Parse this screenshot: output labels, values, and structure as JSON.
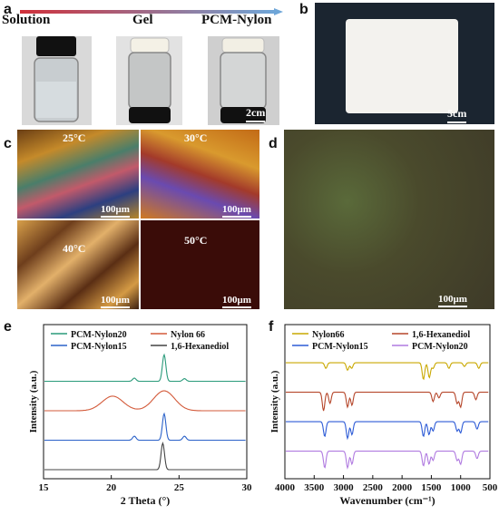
{
  "panel_a": {
    "label": "a",
    "stages": [
      "Solution",
      "Gel",
      "PCM-Nylon"
    ],
    "scale": "2cm",
    "arrow_colors": [
      "#d0303a",
      "#6fa6d8"
    ]
  },
  "panel_b": {
    "label": "b",
    "scale": "5cm"
  },
  "panel_c": {
    "label": "c",
    "temps": [
      "25°C",
      "30°C",
      "40°C",
      "50°C"
    ],
    "scale": "100μm"
  },
  "panel_d": {
    "label": "d",
    "scale": "100μm"
  },
  "chart_data": [
    {
      "panel": "e",
      "type": "line",
      "xlabel": "2 Theta (°)",
      "ylabel": "Intensity (a.u.)",
      "xlim": [
        15,
        30
      ],
      "xticks": [
        "15",
        "20",
        "25",
        "30"
      ],
      "legend": {
        "placement": "top",
        "columns": 2
      },
      "series": [
        {
          "name": "PCM-Nylon20",
          "color": "#2a9a7a",
          "peaks": [
            [
              21.7,
              0.12
            ],
            [
              23.9,
              1.0
            ],
            [
              25.4,
              0.1
            ]
          ]
        },
        {
          "name": "Nylon 66",
          "color": "#d35a3a",
          "peaks": [
            [
              20.1,
              0.55
            ],
            [
              23.9,
              0.75
            ]
          ]
        },
        {
          "name": "PCM-Nylon15",
          "color": "#2b62c9",
          "peaks": [
            [
              21.7,
              0.15
            ],
            [
              23.9,
              1.0
            ],
            [
              25.4,
              0.15
            ]
          ]
        },
        {
          "name": "1,6-Hexanediol",
          "color": "#444444",
          "peaks": [
            [
              23.8,
              1.0
            ]
          ]
        }
      ]
    },
    {
      "panel": "f",
      "type": "line",
      "xlabel": "Wavenumber (cm⁻¹)",
      "ylabel": "Intensity (a.u.)",
      "xlim": [
        4000,
        500
      ],
      "xticks": [
        "4000",
        "3500",
        "3000",
        "2500",
        "2000",
        "1500",
        "1000",
        "500"
      ],
      "legend": {
        "placement": "top",
        "columns": 2
      },
      "series": [
        {
          "name": "Nylon66",
          "color": "#c9a800",
          "dips": [
            [
              3300,
              0.3
            ],
            [
              2930,
              0.4
            ],
            [
              2860,
              0.3
            ],
            [
              1635,
              0.9
            ],
            [
              1535,
              0.8
            ],
            [
              1470,
              0.3
            ],
            [
              1200,
              0.3
            ],
            [
              935,
              0.2
            ],
            [
              690,
              0.3
            ]
          ]
        },
        {
          "name": "1,6-Hexanediol",
          "color": "#b5462a",
          "dips": [
            [
              3340,
              1.0
            ],
            [
              3230,
              0.6
            ],
            [
              2930,
              0.8
            ],
            [
              2855,
              0.7
            ],
            [
              1470,
              0.5
            ],
            [
              1370,
              0.3
            ],
            [
              1060,
              0.6
            ],
            [
              1000,
              0.8
            ],
            [
              740,
              0.4
            ]
          ]
        },
        {
          "name": "PCM-Nylon15",
          "color": "#2d5bd6",
          "dips": [
            [
              3320,
              0.8
            ],
            [
              2930,
              0.9
            ],
            [
              2855,
              0.7
            ],
            [
              1635,
              0.8
            ],
            [
              1540,
              0.7
            ],
            [
              1470,
              0.5
            ],
            [
              1060,
              0.5
            ],
            [
              1000,
              0.6
            ],
            [
              720,
              0.4
            ]
          ]
        },
        {
          "name": "PCM-Nylon20",
          "color": "#b07ae0",
          "dips": [
            [
              3320,
              0.9
            ],
            [
              2930,
              0.9
            ],
            [
              2855,
              0.7
            ],
            [
              1635,
              0.8
            ],
            [
              1540,
              0.7
            ],
            [
              1470,
              0.5
            ],
            [
              1060,
              0.5
            ],
            [
              1000,
              0.7
            ],
            [
              720,
              0.4
            ]
          ]
        }
      ]
    }
  ]
}
